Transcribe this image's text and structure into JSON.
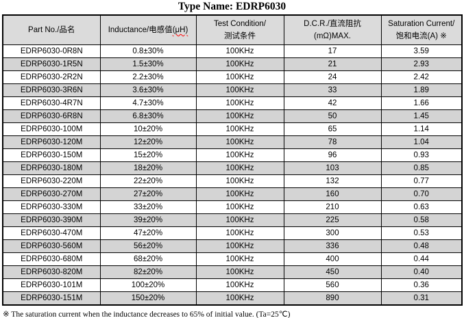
{
  "title": "Type Name: EDRP6030",
  "colors": {
    "header_bg": "#dbdbdb",
    "stripe_bg": "#d4d4d4",
    "squiggle_red": "#ff0000",
    "border": "#000000"
  },
  "table": {
    "columns": [
      {
        "id": "part-no",
        "lines": [
          "Part No./品名"
        ]
      },
      {
        "id": "inductance",
        "lines": [
          "Inductance/电感值"
        ],
        "unit": "(μH)"
      },
      {
        "id": "test-condition",
        "lines": [
          "Test Condition/",
          "测试条件"
        ]
      },
      {
        "id": "dcr",
        "lines": [
          "D.C.R./直流阻抗",
          "(mΩ)MAX."
        ]
      },
      {
        "id": "saturation-current",
        "lines": [
          "Saturation Current/",
          "饱和电流(A)  ※"
        ]
      }
    ],
    "rows": [
      [
        "EDRP6030-0R8N",
        "0.8±30%",
        "100KHz",
        "17",
        "3.59"
      ],
      [
        "EDRP6030-1R5N",
        "1.5±30%",
        "100KHz",
        "21",
        "2.93"
      ],
      [
        "EDRP6030-2R2N",
        "2.2±30%",
        "100KHz",
        "24",
        "2.42"
      ],
      [
        "EDRP6030-3R6N",
        "3.6±30%",
        "100KHz",
        "33",
        "1.89"
      ],
      [
        "EDRP6030-4R7N",
        "4.7±30%",
        "100KHz",
        "42",
        "1.66"
      ],
      [
        "EDRP6030-6R8N",
        "6.8±30%",
        "100KHz",
        "50",
        "1.45"
      ],
      [
        "EDRP6030-100M",
        "10±20%",
        "100KHz",
        "65",
        "1.14"
      ],
      [
        "EDRP6030-120M",
        "12±20%",
        "100KHz",
        "78",
        "1.04"
      ],
      [
        "EDRP6030-150M",
        "15±20%",
        "100KHz",
        "96",
        "0.93"
      ],
      [
        "EDRP6030-180M",
        "18±20%",
        "100KHz",
        "103",
        "0.85"
      ],
      [
        "EDRP6030-220M",
        "22±20%",
        "100KHz",
        "132",
        "0.77"
      ],
      [
        "EDRP6030-270M",
        "27±20%",
        "100KHz",
        "160",
        "0.70"
      ],
      [
        "EDRP6030-330M",
        "33±20%",
        "100KHz",
        "210",
        "0.63"
      ],
      [
        "EDRP6030-390M",
        "39±20%",
        "100KHz",
        "225",
        "0.58"
      ],
      [
        "EDRP6030-470M",
        "47±20%",
        "100KHz",
        "300",
        "0.53"
      ],
      [
        "EDRP6030-560M",
        "56±20%",
        "100KHz",
        "336",
        "0.48"
      ],
      [
        "EDRP6030-680M",
        "68±20%",
        "100KHz",
        "400",
        "0.44"
      ],
      [
        "EDRP6030-820M",
        "82±20%",
        "100KHz",
        "450",
        "0.40"
      ],
      [
        "EDRP6030-101M",
        "100±20%",
        "100KHz",
        "560",
        "0.36"
      ],
      [
        "EDRP6030-151M",
        "150±20%",
        "100KHz",
        "890",
        "0.31"
      ]
    ]
  },
  "footnote": "※  The saturation current when the inductance decreases to 65% of initial value. (Ta=25℃)"
}
